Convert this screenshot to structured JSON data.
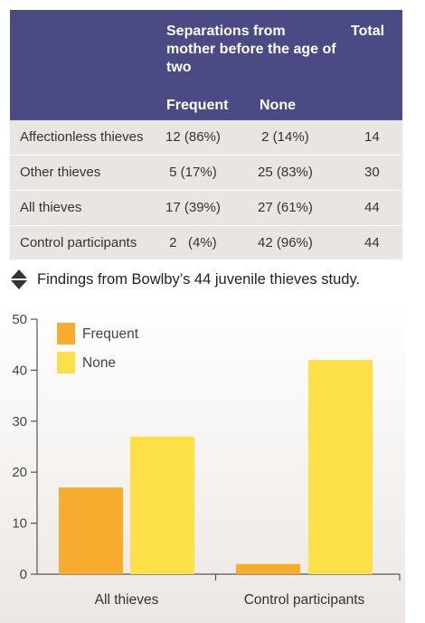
{
  "table": {
    "header": {
      "group_label": "Separations from mother before the age of two",
      "total_label": "Total",
      "frequent_label": "Frequent",
      "none_label": "None"
    },
    "rows": [
      {
        "label": "Affectionless thieves",
        "frequent": "12 (86%)",
        "none": " 2 (14%)",
        "total": "14"
      },
      {
        "label": "Other thieves",
        "frequent": " 5 (17%)",
        "none": "25 (83%)",
        "total": "30"
      },
      {
        "label": "All thieves",
        "frequent": "17 (39%)",
        "none": "27 (61%)",
        "total": "44"
      },
      {
        "label": "Control participants",
        "frequent": " 2   (4%)",
        "none": "42 (96%)",
        "total": "44"
      }
    ],
    "colors": {
      "header_bg": "#4a4b85",
      "body_bg": "#e9e5e3"
    }
  },
  "caption": {
    "text": "Findings from Bowlby’s 44 juvenile thieves study.",
    "icon": "up-down-triangle-icon"
  },
  "chart_data": {
    "type": "bar",
    "categories": [
      "All thieves",
      "Control participants"
    ],
    "series": [
      {
        "name": "Frequent",
        "values": [
          17,
          2
        ],
        "color": "#f7ab2f"
      },
      {
        "name": "None",
        "values": [
          27,
          42
        ],
        "color": "#fde047"
      }
    ],
    "title": "",
    "xlabel": "",
    "ylabel": "",
    "ylim": [
      0,
      50
    ],
    "yticks": [
      0,
      10,
      20,
      30,
      40,
      50
    ],
    "grid": false,
    "legend_position": "top-left"
  }
}
